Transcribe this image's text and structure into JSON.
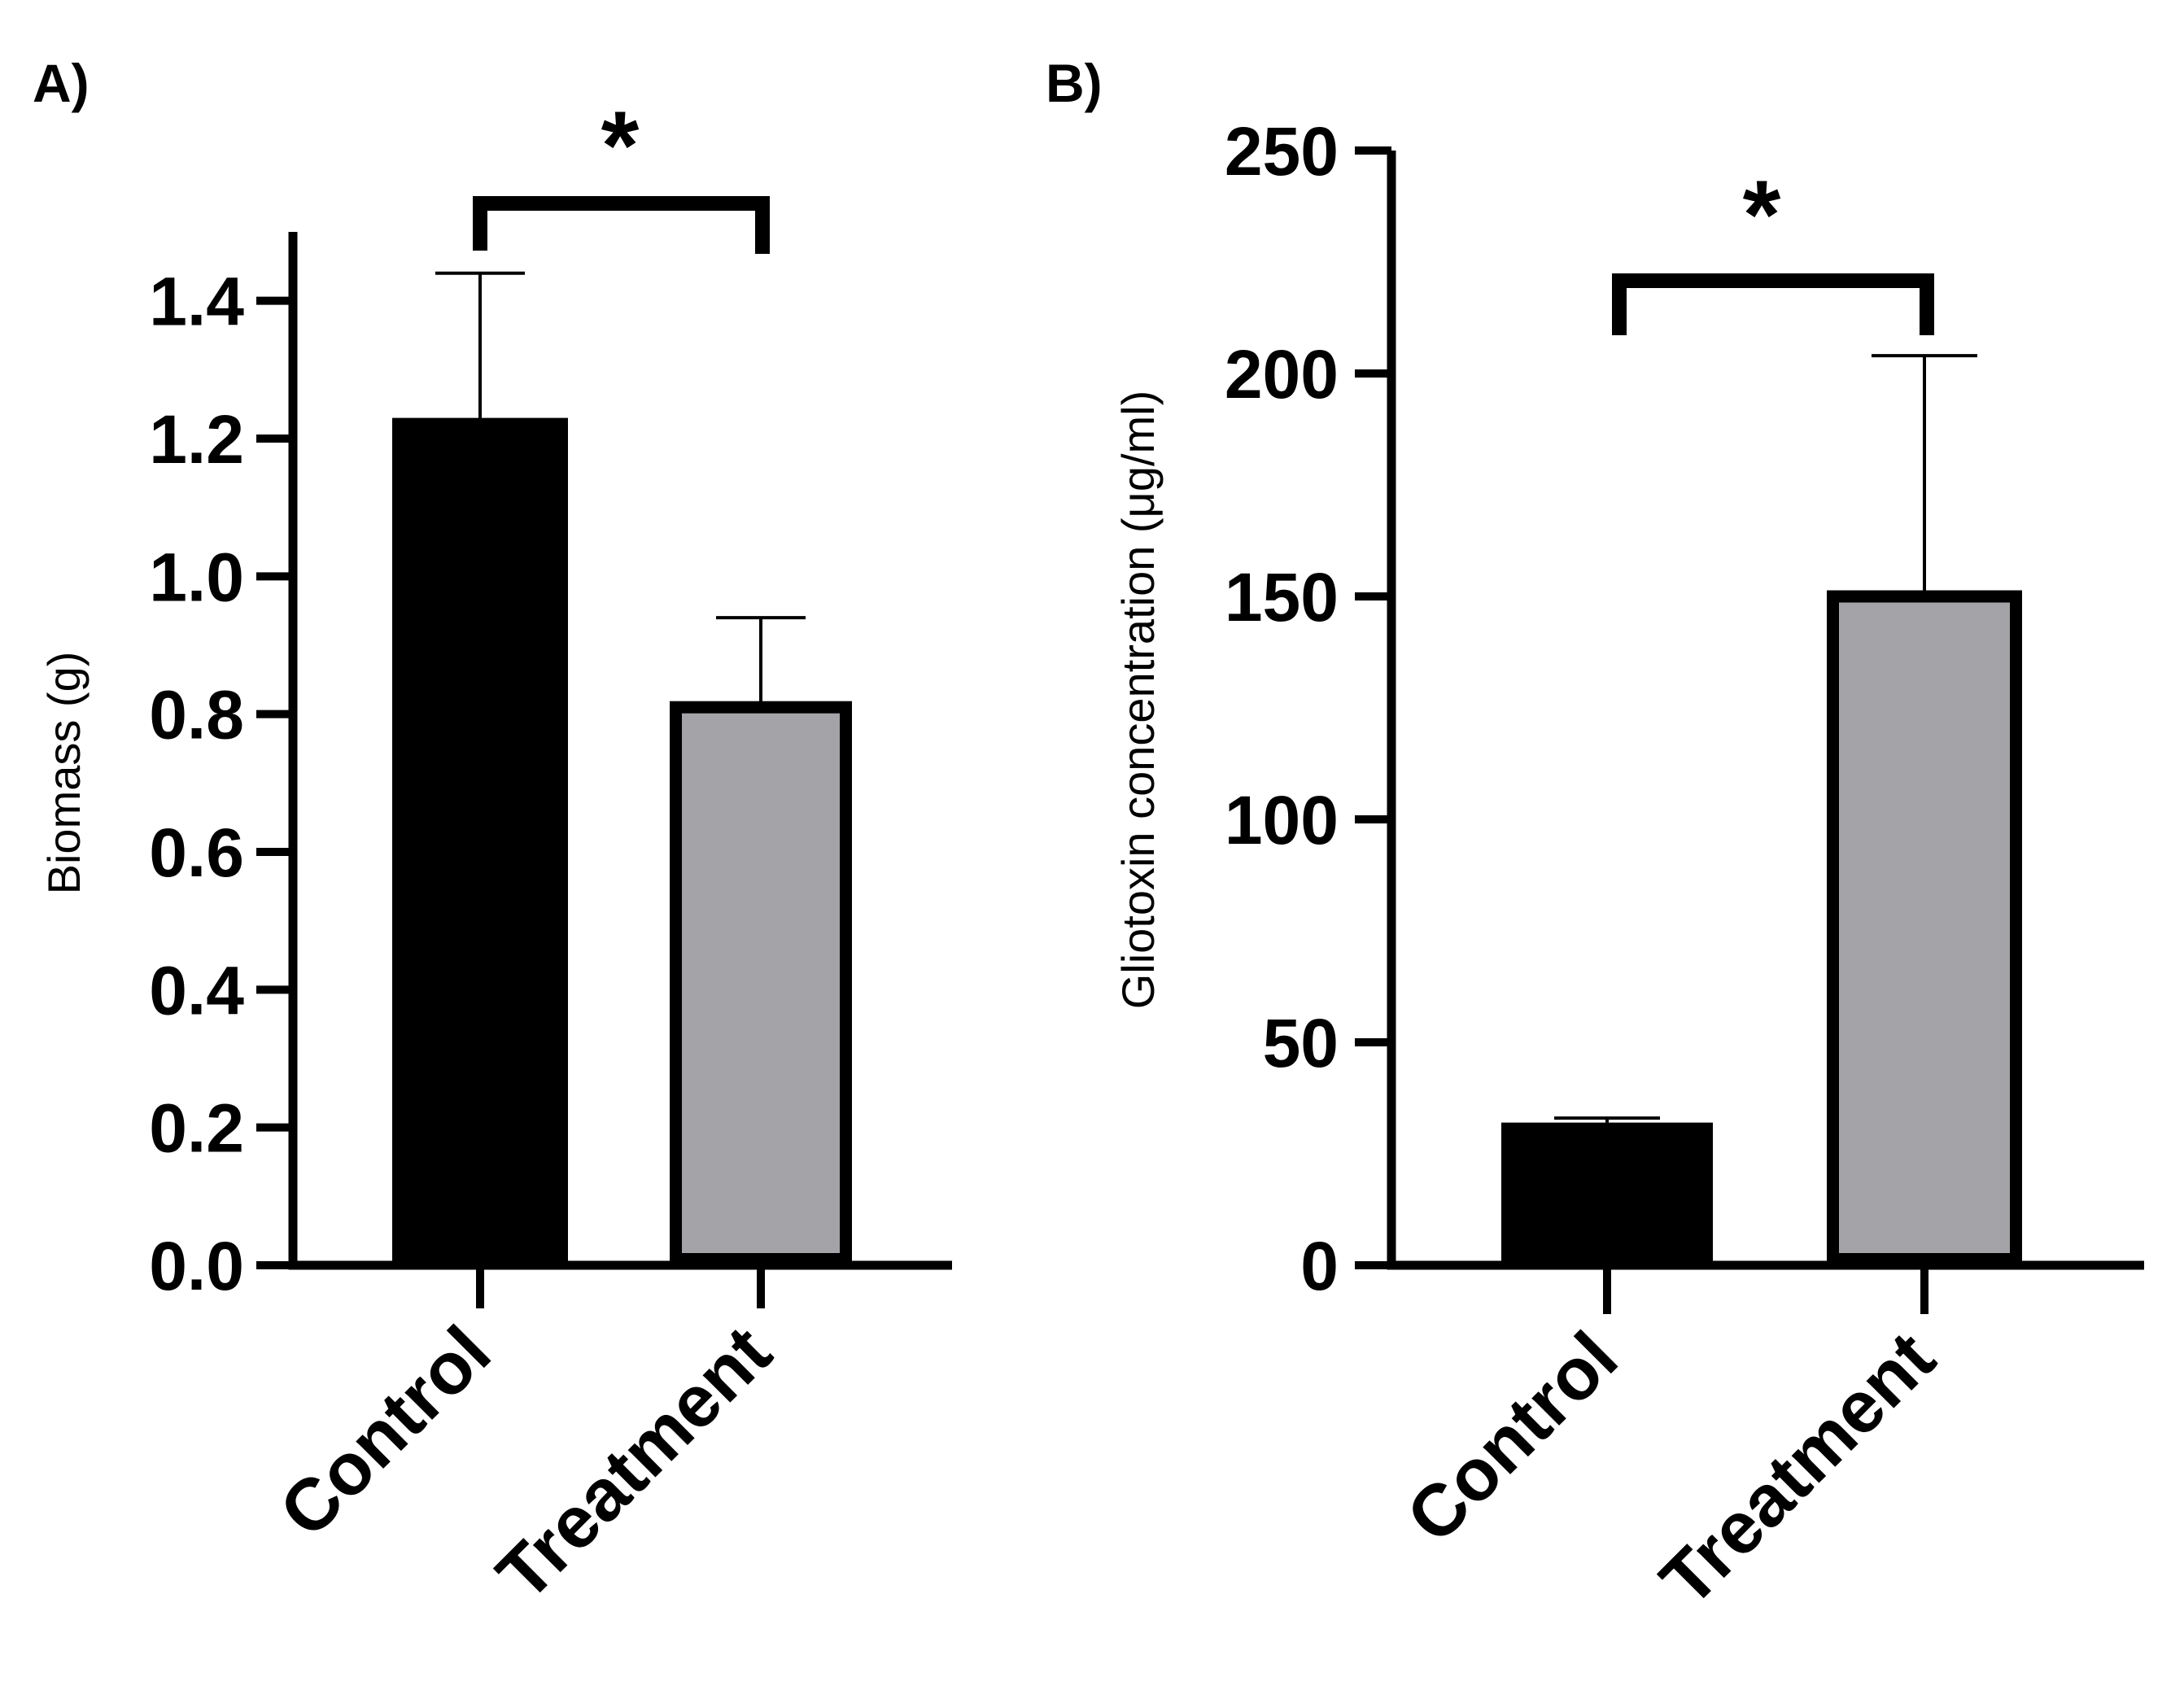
{
  "colors": {
    "control_fill": "#000000",
    "treatment_fill": "#a4a3a8",
    "stroke": "#000000",
    "background": "#ffffff"
  },
  "chart_data": [
    {
      "panel_label": "A)",
      "type": "bar",
      "categories": [
        "Control",
        "Treatment"
      ],
      "values": [
        1.23,
        0.81
      ],
      "error_upper": [
        1.44,
        0.94
      ],
      "ylabel": "Biomass (g)",
      "xlabel": "",
      "ylim": [
        0,
        1.5
      ],
      "yticks": [
        0.0,
        0.2,
        0.4,
        0.6,
        0.8,
        1.0,
        1.2,
        1.4
      ],
      "ytick_labels": [
        "0.0",
        "0.2",
        "0.4",
        "0.6",
        "0.8",
        "1.0",
        "1.2",
        "1.4"
      ],
      "significance": "*",
      "grid": false
    },
    {
      "panel_label": "B)",
      "type": "bar",
      "categories": [
        "Control",
        "Treatment"
      ],
      "values": [
        32,
        150
      ],
      "error_upper": [
        33,
        204
      ],
      "ylabel": "Gliotoxin concentration (μg/ml)",
      "xlabel": "",
      "ylim": [
        0,
        250
      ],
      "yticks": [
        0,
        50,
        100,
        150,
        200,
        250
      ],
      "ytick_labels": [
        "0",
        "50",
        "100",
        "150",
        "200",
        "250"
      ],
      "significance": "*",
      "grid": false
    }
  ]
}
